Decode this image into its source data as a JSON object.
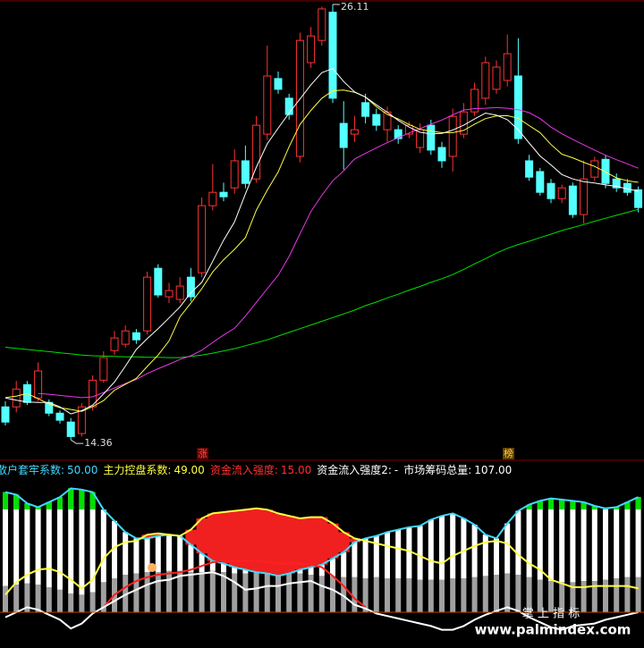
{
  "price_panel": {
    "ylim": [
      14.17,
      26.23
    ],
    "candles": [
      [
        15.25,
        15.4,
        14.75,
        14.84
      ],
      [
        15.25,
        15.95,
        15.1,
        15.73
      ],
      [
        15.85,
        15.95,
        15.3,
        15.37
      ],
      [
        15.49,
        16.45,
        15.4,
        16.22
      ],
      [
        15.37,
        15.45,
        15.0,
        15.08
      ],
      [
        15.08,
        15.15,
        14.8,
        14.89
      ],
      [
        14.84,
        14.95,
        14.36,
        14.45
      ],
      [
        14.53,
        15.35,
        14.45,
        15.25
      ],
      [
        15.25,
        16.1,
        15.15,
        15.97
      ],
      [
        15.97,
        16.75,
        15.9,
        16.58
      ],
      [
        16.77,
        17.3,
        16.65,
        17.11
      ],
      [
        16.94,
        17.45,
        16.85,
        17.3
      ],
      [
        17.25,
        17.35,
        16.95,
        17.06
      ],
      [
        17.3,
        18.9,
        17.2,
        18.75
      ],
      [
        18.99,
        19.1,
        18.2,
        18.27
      ],
      [
        18.22,
        18.6,
        18.05,
        18.39
      ],
      [
        18.15,
        18.75,
        18.05,
        18.51
      ],
      [
        18.75,
        19.0,
        18.1,
        18.22
      ],
      [
        18.87,
        20.9,
        18.75,
        20.68
      ],
      [
        20.68,
        21.8,
        20.55,
        21.04
      ],
      [
        21.04,
        21.3,
        20.8,
        20.92
      ],
      [
        21.16,
        22.2,
        21.0,
        21.89
      ],
      [
        21.89,
        22.3,
        21.15,
        21.28
      ],
      [
        21.4,
        23.1,
        21.3,
        22.85
      ],
      [
        22.61,
        25.0,
        22.45,
        24.18
      ],
      [
        24.11,
        24.3,
        23.7,
        23.82
      ],
      [
        23.58,
        23.7,
        23.0,
        23.14
      ],
      [
        22.01,
        25.35,
        21.85,
        25.14
      ],
      [
        24.54,
        25.5,
        24.4,
        25.26
      ],
      [
        25.14,
        26.05,
        25.0,
        25.99
      ],
      [
        25.9,
        26.11,
        23.45,
        23.58
      ],
      [
        22.9,
        23.5,
        21.65,
        22.25
      ],
      [
        22.61,
        23.1,
        22.4,
        22.73
      ],
      [
        23.46,
        23.7,
        22.9,
        23.09
      ],
      [
        23.14,
        23.3,
        22.7,
        22.85
      ],
      [
        22.73,
        23.35,
        22.4,
        23.21
      ],
      [
        22.73,
        22.85,
        22.35,
        22.49
      ],
      [
        22.61,
        22.95,
        22.5,
        22.85
      ],
      [
        22.25,
        22.9,
        22.1,
        22.73
      ],
      [
        22.85,
        23.0,
        22.05,
        22.18
      ],
      [
        22.25,
        22.4,
        21.7,
        21.89
      ],
      [
        22.01,
        23.3,
        21.6,
        23.09
      ],
      [
        22.61,
        23.45,
        22.5,
        23.21
      ],
      [
        23.21,
        24.0,
        23.1,
        23.82
      ],
      [
        23.58,
        24.7,
        23.4,
        24.54
      ],
      [
        23.82,
        24.6,
        23.7,
        24.42
      ],
      [
        24.06,
        25.3,
        23.9,
        24.78
      ],
      [
        24.18,
        25.2,
        22.35,
        22.49
      ],
      [
        21.89,
        22.05,
        21.35,
        21.45
      ],
      [
        21.6,
        21.7,
        20.95,
        21.04
      ],
      [
        21.28,
        21.4,
        20.75,
        20.87
      ],
      [
        20.87,
        21.25,
        20.75,
        21.16
      ],
      [
        21.21,
        21.3,
        20.35,
        20.44
      ],
      [
        20.44,
        21.9,
        20.2,
        21.4
      ],
      [
        21.45,
        22.0,
        21.35,
        21.89
      ],
      [
        21.93,
        22.05,
        21.15,
        21.28
      ],
      [
        21.4,
        21.55,
        21.05,
        21.16
      ],
      [
        21.28,
        21.4,
        20.95,
        21.04
      ],
      [
        21.11,
        21.2,
        20.5,
        20.63
      ]
    ],
    "up_color": "#ff3232",
    "down_color": "#54ffff",
    "ma_lines": [
      {
        "color": "#00e000",
        "values": [
          16.86,
          16.83,
          16.8,
          16.77,
          16.74,
          16.71,
          16.68,
          16.65,
          16.63,
          16.62,
          16.61,
          16.6,
          16.6,
          16.59,
          16.59,
          16.58,
          16.58,
          16.61,
          16.65,
          16.7,
          16.76,
          16.82,
          16.9,
          16.98,
          17.06,
          17.16,
          17.26,
          17.36,
          17.46,
          17.56,
          17.66,
          17.76,
          17.86,
          17.98,
          18.08,
          18.19,
          18.29,
          18.4,
          18.5,
          18.61,
          18.71,
          18.82,
          18.96,
          19.11,
          19.25,
          19.4,
          19.53,
          19.63,
          19.72,
          19.82,
          19.91,
          20.01,
          20.09,
          20.17,
          20.26,
          20.34,
          20.42,
          20.5,
          20.58
        ]
      },
      {
        "color": "#e838e8",
        "values": [
          null,
          null,
          null,
          15.61,
          15.59,
          15.56,
          15.53,
          15.5,
          15.52,
          15.64,
          15.76,
          15.88,
          15.99,
          16.15,
          16.28,
          16.4,
          16.53,
          16.63,
          16.78,
          16.99,
          17.19,
          17.37,
          17.7,
          18.07,
          18.44,
          18.8,
          19.31,
          19.92,
          20.52,
          20.96,
          21.35,
          21.62,
          21.94,
          22.09,
          22.24,
          22.38,
          22.51,
          22.64,
          22.76,
          22.88,
          22.99,
          23.13,
          23.26,
          23.3,
          23.31,
          23.33,
          23.31,
          23.27,
          23.19,
          23.03,
          22.8,
          22.62,
          22.47,
          22.32,
          22.18,
          22.04,
          21.92,
          21.81,
          21.69
        ]
      },
      {
        "color": "#ffff40",
        "values": [
          15.5,
          15.54,
          15.61,
          15.47,
          15.33,
          15.23,
          15.18,
          15.13,
          15.26,
          15.42,
          15.7,
          15.86,
          16.02,
          16.34,
          16.65,
          17.03,
          17.68,
          18.05,
          18.44,
          18.89,
          19.22,
          19.5,
          19.82,
          20.56,
          21.1,
          21.59,
          22.27,
          22.87,
          23.25,
          23.58,
          23.78,
          23.8,
          23.74,
          23.61,
          23.35,
          23.14,
          23.02,
          22.87,
          22.74,
          22.69,
          22.65,
          22.65,
          22.71,
          22.88,
          23.03,
          23.1,
          23.11,
          23.04,
          22.84,
          22.65,
          22.33,
          22.07,
          21.97,
          21.85,
          21.74,
          21.59,
          21.43,
          21.35,
          21.31
        ]
      },
      {
        "color": "#ffffff",
        "values": [
          15.49,
          15.43,
          15.38,
          15.37,
          15.37,
          15.25,
          15.06,
          15.15,
          15.3,
          15.6,
          15.92,
          16.35,
          16.8,
          17.09,
          17.36,
          17.65,
          17.95,
          18.33,
          18.61,
          19.18,
          19.75,
          20.24,
          21.0,
          21.72,
          22.35,
          22.77,
          23.18,
          23.56,
          23.94,
          24.27,
          24.38,
          24.03,
          23.75,
          23.61,
          23.4,
          23.2,
          22.98,
          22.8,
          22.66,
          22.62,
          22.63,
          22.72,
          22.85,
          23.02,
          23.18,
          23.12,
          23.0,
          22.73,
          22.37,
          22.02,
          21.78,
          21.52,
          21.4,
          21.33,
          21.29,
          21.24,
          21.2,
          21.13,
          21.07
        ]
      }
    ],
    "markers": [
      "涨",
      "榜"
    ]
  },
  "indicator_panel": {
    "legend": [
      {
        "label": "散户套牢系数:",
        "value": "50.00",
        "color": "#40d8ff"
      },
      {
        "label": "主力控盘系数:",
        "value": "49.00",
        "color": "#ffff40"
      },
      {
        "label": "资金流入强度:",
        "value": "15.00",
        "color": "#ff3030"
      },
      {
        "label": "资金流入强度2:",
        "value": "-",
        "color": "#ffffff"
      },
      {
        "label": "市场筹码总量:",
        "value": "107.00",
        "color": "#ffffff"
      }
    ],
    "ylim": [
      -25,
      100
    ],
    "columns": [
      21,
      22,
      23,
      22,
      20,
      18,
      15,
      14,
      16,
      24,
      27,
      30,
      31,
      32,
      32,
      33,
      33,
      32,
      32,
      33,
      32,
      31,
      31,
      32,
      32,
      32,
      31,
      31,
      30,
      29,
      29,
      28,
      28,
      27,
      28,
      27,
      27,
      27,
      26,
      26,
      26,
      27,
      27,
      28,
      29,
      30,
      31,
      30,
      28,
      26,
      25,
      24,
      24,
      25,
      25,
      26,
      27,
      28,
      28
    ],
    "series": [
      {
        "color": "#40d8ff",
        "values": [
          96,
          94,
          87,
          84,
          88,
          92,
          99,
          98,
          96,
          82,
          73,
          64,
          59,
          59,
          61,
          62,
          61,
          54,
          47,
          41,
          39,
          36,
          34,
          32,
          31,
          29,
          31,
          34,
          36,
          38,
          43,
          48,
          56,
          59,
          61,
          64,
          66,
          68,
          69,
          74,
          77,
          79,
          75,
          70,
          62,
          59,
          71,
          81,
          86,
          89,
          91,
          90,
          89,
          88,
          85,
          83,
          84,
          88,
          92
        ]
      },
      {
        "color": "#ffff40",
        "values": [
          14,
          24,
          30,
          34,
          35,
          32,
          26,
          19,
          26,
          43,
          52,
          56,
          57,
          62,
          63,
          62,
          61,
          66,
          75,
          79,
          80,
          81,
          82,
          83,
          82,
          79,
          77,
          75,
          76,
          76,
          71,
          64,
          59,
          57,
          55,
          53,
          51,
          49,
          45,
          41,
          39,
          45,
          49,
          53,
          56,
          57,
          55,
          46,
          39,
          34,
          26,
          23,
          20,
          20,
          21,
          21,
          21,
          21,
          19
        ]
      },
      {
        "color": "#ff2020",
        "values": [
          null,
          null,
          null,
          null,
          null,
          null,
          null,
          null,
          null,
          4,
          14,
          20,
          25,
          28,
          30,
          31,
          32,
          34,
          37,
          40,
          41,
          41,
          41,
          41,
          40,
          39,
          39,
          39,
          38,
          36,
          29,
          21,
          11,
          4,
          null,
          null,
          null,
          null,
          null,
          null,
          null,
          null,
          null,
          null,
          null,
          null,
          null,
          null,
          null,
          null,
          null,
          null,
          null,
          null,
          null,
          null,
          null,
          null,
          null
        ]
      },
      {
        "color": "#ffffff",
        "values": [
          -4,
          0,
          4,
          2,
          -2,
          -6,
          -13,
          -9,
          -1,
          4,
          9,
          14,
          18,
          22,
          25,
          26,
          29,
          30,
          31,
          32,
          29,
          24,
          18,
          19,
          21,
          21,
          23,
          24,
          25,
          21,
          18,
          13,
          6,
          3,
          -1,
          -3,
          -5,
          -7,
          -9,
          -11,
          -14,
          -14,
          -11,
          -6,
          -2,
          1,
          4,
          1,
          -4,
          -8,
          -12,
          -14,
          -11,
          -10,
          -9,
          -6,
          -4,
          -2,
          0
        ]
      }
    ]
  },
  "watermark": {
    "title": "掌 上 指 标",
    "url": "www.palmindex.com"
  }
}
